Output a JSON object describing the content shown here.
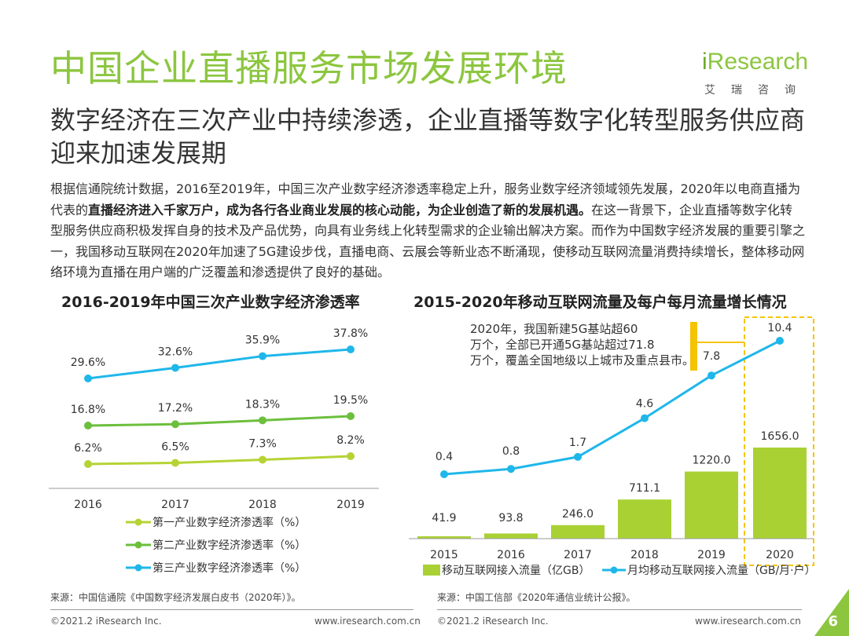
{
  "header": {
    "title": "中国企业直播服务市场发展环境",
    "logo_main": "Research",
    "logo_i": "i",
    "logo_sub": "艾瑞咨询"
  },
  "subtitle": "数字经济在三次产业中持续渗透，企业直播等数字化转型服务供应商迎来加速发展期",
  "body": {
    "part1": "根据信通院统计数据，2016至2019年，中国三次产业数字经济渗透率稳定上升，服务业数字经济领域领先发展，2020年以电商直播为代表的",
    "bold": "直播经济进入千家万户，成为各行各业商业发展的核心动能，为企业创造了新的发展机遇。",
    "part2": "在这一背景下，企业直播等数字化转型服务供应商积极发挥自身的技术及产品优势，向具有业务线上化转型需求的企业输出解决方案。而作为中国数字经济发展的重要引擎之一，我国移动互联网在2020年加速了5G建设步伐，直播电商、云展会等新业态不断涌现，使移动互联网流量消费持续增长，整体移动网络环境为直播在用户端的广泛覆盖和渗透提供了良好的基础。"
  },
  "chart_data": [
    {
      "type": "line",
      "title": "2016-2019年中国三次产业数字经济渗透率",
      "x": [
        "2016",
        "2017",
        "2018",
        "2019"
      ],
      "unit": "%",
      "series": [
        {
          "name": "第一产业数字经济渗透率（%）",
          "values": [
            6.2,
            6.5,
            7.3,
            8.2
          ],
          "labels": [
            "6.2%",
            "6.5%",
            "7.3%",
            "8.2%"
          ],
          "color": "#b5d334"
        },
        {
          "name": "第二产业数字经济渗透率（%）",
          "values": [
            16.8,
            17.2,
            18.3,
            19.5
          ],
          "labels": [
            "16.8%",
            "17.2%",
            "18.3%",
            "19.5%"
          ],
          "color": "#6cbf3c"
        },
        {
          "name": "第三产业数字经济渗透率（%）",
          "values": [
            29.6,
            32.6,
            35.9,
            37.8
          ],
          "labels": [
            "29.6%",
            "32.6%",
            "35.9%",
            "37.8%"
          ],
          "color": "#1fb7ea"
        }
      ],
      "legend": "bottom",
      "source": "来源：中国信通院《中国数字经济发展白皮书（2020年）》。"
    },
    {
      "type": "bar+line",
      "title": "2015-2020年移动互联网流量及每户每月流量增长情况",
      "categories": [
        "2015",
        "2016",
        "2017",
        "2018",
        "2019",
        "2020"
      ],
      "bars": {
        "name": "移动互联网接入流量（亿GB）",
        "values": [
          41.9,
          93.8,
          246.0,
          711.1,
          1220.0,
          1656.0
        ],
        "labels": [
          "41.9",
          "93.8",
          "246.0",
          "711.1",
          "1220.0",
          "1656.0"
        ],
        "color": "#a9d134"
      },
      "line": {
        "name": "月均移动互联网接入流量（GB/月·户）",
        "values": [
          0.4,
          0.8,
          1.7,
          4.6,
          7.8,
          10.4
        ],
        "labels": [
          "0.4",
          "0.8",
          "1.7",
          "4.6",
          "7.8",
          "10.4"
        ],
        "color": "#1fb7ea"
      },
      "annotation": "2020年，我国新建5G基站超60万个，全部已开通5G基站超过71.8万个，覆盖全国地级以上城市及重点县市。",
      "highlight_category": "2020",
      "highlight_color": "#f5c400",
      "legend": "bottom",
      "source": "来源：中国工信部《2020年通信业统计公报》。"
    }
  ],
  "footer": {
    "left_copyright": "©2021.2 iResearch Inc.",
    "left_url": "www.iresearch.com.cn",
    "right_copyright": "©2021.2 iResearch Inc.",
    "right_url": "www.iresearch.com.cn",
    "page": "6"
  },
  "colors": {
    "accent": "#8cc63f"
  }
}
